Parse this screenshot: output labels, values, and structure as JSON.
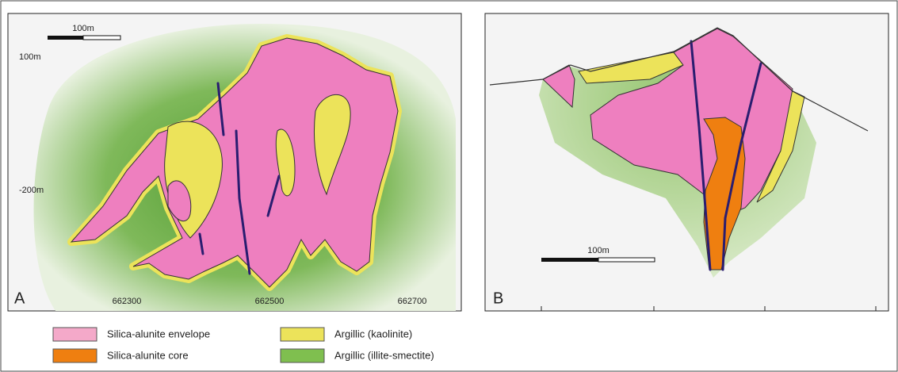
{
  "panel_a": {
    "label": "A",
    "scale_bar": "100m",
    "y_labels": [
      "100m",
      "-200m"
    ],
    "x_labels": [
      "662300",
      "662500",
      "662700"
    ]
  },
  "panel_b": {
    "label": "B",
    "scale_bar": "100m"
  },
  "legend": [
    {
      "label": "Silica-alunite envelope"
    },
    {
      "label": "Silica-alunite core"
    },
    {
      "label": "Argillic (kaolinite)"
    },
    {
      "label": "Argillic (illite-smectite)"
    }
  ]
}
